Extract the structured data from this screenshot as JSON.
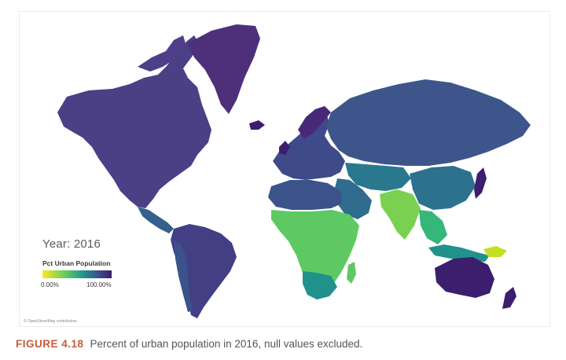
{
  "map": {
    "year_label": "Year: 2016",
    "legend": {
      "title": "Pct Urban Population",
      "min_label": "0.00%",
      "max_label": "100.00%",
      "min_color": "#fde725",
      "mid_color": "#21918c",
      "max_color": "#3b1f6e"
    },
    "attribution": "© OpenStreetMap contributors",
    "ocean_color": "#ffffff"
  },
  "caption": {
    "label": "FIGURE 4.18",
    "text": "Percent of urban population in 2016, null values excluded."
  }
}
